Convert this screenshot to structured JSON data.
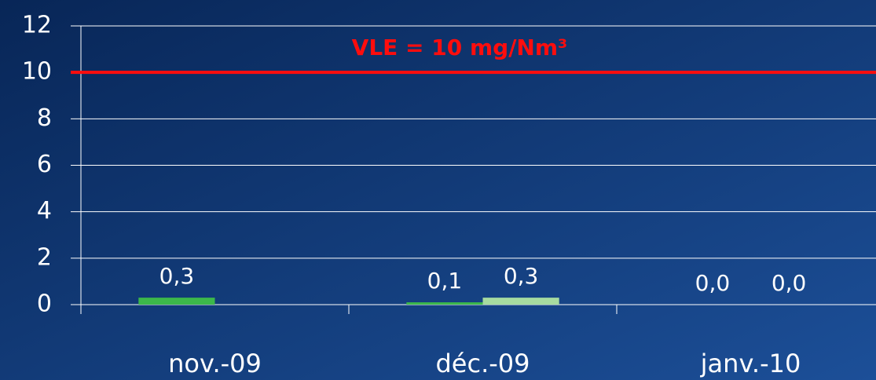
{
  "chart_data": {
    "type": "bar",
    "categories": [
      "nov.-09",
      "déc.-09",
      "janv.-10"
    ],
    "series": [
      {
        "color": "#3cb84a",
        "values": [
          0.3,
          0.1,
          0.0
        ],
        "value_labels": [
          "0,3",
          "0,1",
          "0,0"
        ]
      },
      {
        "color": "#a6dba0",
        "values": [
          null,
          0.3,
          0.0
        ],
        "value_labels": [
          null,
          "0,3",
          "0,0"
        ]
      }
    ],
    "ylim": [
      0,
      12
    ],
    "yticks": [
      0,
      2,
      4,
      6,
      8,
      10,
      12
    ],
    "grid": true,
    "reference_line": {
      "value": 10,
      "label": "VLE = 10 mg/Nm³",
      "color": "#ff0d0d"
    }
  }
}
